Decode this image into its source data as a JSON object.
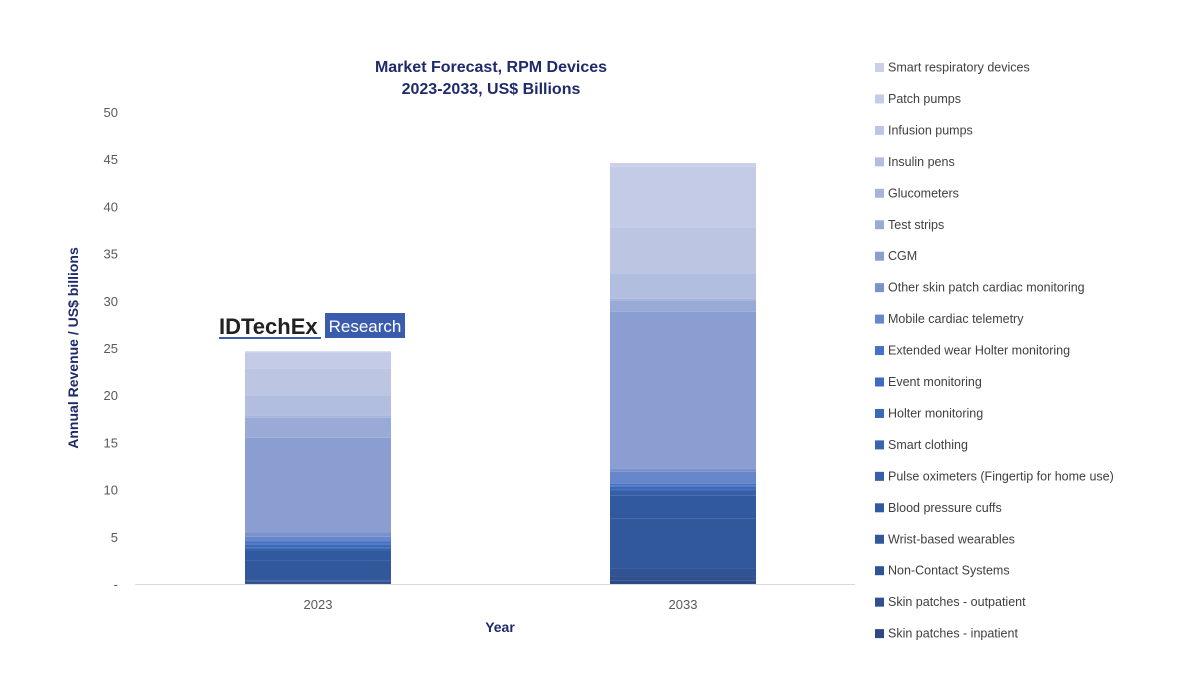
{
  "chart_data": {
    "type": "bar",
    "stacked": true,
    "title": [
      "Market Forecast, RPM Devices",
      "2023-2033, US$ Billions"
    ],
    "xlabel": "Year",
    "ylabel": "Annual Revenue / US$ billions",
    "categories": [
      "2023",
      "2033"
    ],
    "ylim": [
      0,
      50
    ],
    "yticks": [
      0,
      5,
      10,
      15,
      20,
      25,
      30,
      35,
      40,
      45,
      50
    ],
    "ytick_labels": [
      "-",
      "5",
      "10",
      "15",
      "20",
      "25",
      "30",
      "35",
      "40",
      "45",
      "50"
    ],
    "grid": false,
    "legend_position": "right",
    "series": [
      {
        "name": "Skin patches - inpatient",
        "color": "#2d4a86",
        "values": [
          0.1,
          0.4
        ]
      },
      {
        "name": "Skin patches - outpatient",
        "color": "#2f4f8f",
        "values": [
          0.2,
          0.4
        ]
      },
      {
        "name": "Non-Contact Systems",
        "color": "#305394",
        "values": [
          0.1,
          0.85
        ]
      },
      {
        "name": "Wrist-based wearables",
        "color": "#31589b",
        "values": [
          2.1,
          5.25
        ]
      },
      {
        "name": "Blood pressure cuffs",
        "color": "#3159a0",
        "values": [
          1.0,
          2.5
        ]
      },
      {
        "name": "Pulse oximeters (Fingertip for home use)",
        "color": "#365fa9",
        "values": [
          0.25,
          0.5
        ]
      },
      {
        "name": "Smart clothing",
        "color": "#3a63b0",
        "values": [
          0.1,
          0.1
        ]
      },
      {
        "name": "Holter monitoring",
        "color": "#3c68b8",
        "values": [
          0.3,
          0.3
        ]
      },
      {
        "name": "Event monitoring",
        "color": "#3f6cc0",
        "values": [
          0.15,
          0.1
        ]
      },
      {
        "name": "Extended wear Holter monitoring",
        "color": "#4472c4",
        "values": [
          0.2,
          0.2
        ]
      },
      {
        "name": "Mobile cardiac telemetry",
        "color": "#6886ca",
        "values": [
          0.5,
          1.3
        ]
      },
      {
        "name": "Other skin patch cardiac monitoring",
        "color": "#7a92cc",
        "values": [
          0.45,
          0.35
        ]
      },
      {
        "name": "CGM",
        "color": "#8b9ed1",
        "values": [
          10.05,
          16.6
        ]
      },
      {
        "name": "Test strips",
        "color": "#99aad6",
        "values": [
          2.1,
          1.2
        ]
      },
      {
        "name": "Glucometers",
        "color": "#a6b4da",
        "values": [
          0.2,
          0.15
        ]
      },
      {
        "name": "Insulin pens",
        "color": "#b2bedf",
        "values": [
          2.2,
          2.7
        ]
      },
      {
        "name": "Infusion pumps",
        "color": "#bcc6e3",
        "values": [
          2.85,
          4.9
        ]
      },
      {
        "name": "Patch pumps",
        "color": "#c4cbe6",
        "values": [
          1.7,
          6.4
        ]
      },
      {
        "name": "Smart respiratory devices",
        "color": "#cbd0e8",
        "values": [
          0.1,
          0.4
        ]
      }
    ]
  },
  "logo": {
    "brand": "IDTechEx",
    "tag": "Research",
    "tag_color": "#3a5cad"
  }
}
